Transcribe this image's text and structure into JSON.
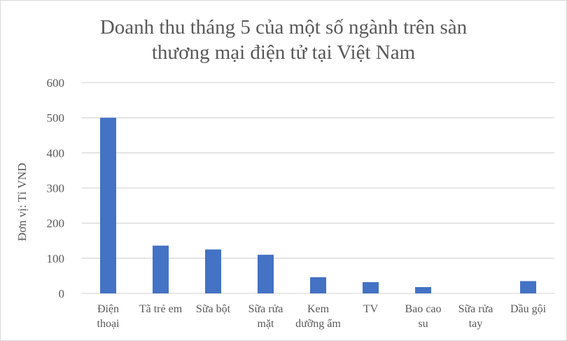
{
  "chart_data": {
    "type": "bar",
    "title": [
      "Doanh thu tháng 5 của một số ngành trên sàn",
      "thương mại điện tử tại Việt Nam"
    ],
    "ylabel": "Đơn vị: Tỉ VND",
    "xlabel": "",
    "ylim": [
      0,
      600
    ],
    "yticks": [
      0,
      100,
      200,
      300,
      400,
      500,
      600
    ],
    "grid": true,
    "categories": [
      [
        "Điện",
        "thoại"
      ],
      [
        "Tã trẻ em"
      ],
      [
        "Sữa bột"
      ],
      [
        "Sữa rửa",
        "mặt"
      ],
      [
        "Kem",
        "dưỡng ẩm"
      ],
      [
        "TV"
      ],
      [
        "Bao cao",
        "su"
      ],
      [
        "Sữa rửa",
        "tay"
      ],
      [
        "Dầu gội"
      ]
    ],
    "values": [
      500,
      136,
      125,
      110,
      46,
      32,
      18,
      0,
      35
    ],
    "bar_color": "#4472c4"
  }
}
